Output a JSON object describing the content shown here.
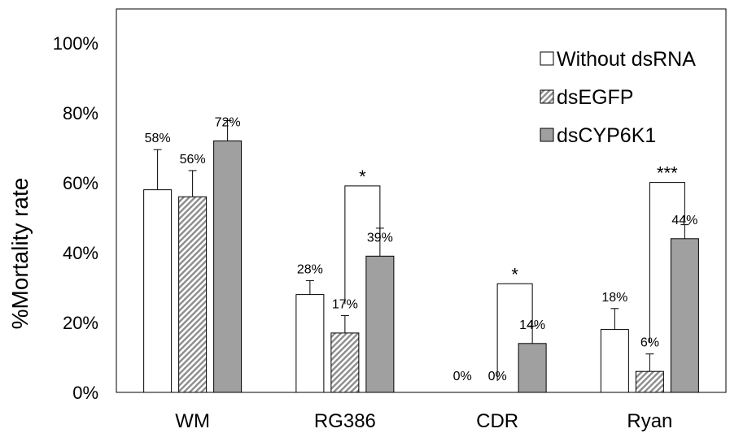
{
  "chart_data": {
    "type": "bar",
    "title": "",
    "xlabel": "",
    "ylabel": "%Mortality rate",
    "ylim": [
      0,
      100
    ],
    "yticks": [
      "0%",
      "20%",
      "40%",
      "60%",
      "80%",
      "100%"
    ],
    "categories": [
      "WM",
      "RG386",
      "CDR",
      "Ryan"
    ],
    "series": [
      {
        "name": "Without dsRNA",
        "values": [
          58,
          28,
          0,
          18
        ],
        "errors": [
          11.5,
          4,
          0,
          6
        ],
        "labels": [
          "58%",
          "28%",
          "0%",
          "18%"
        ],
        "fill": "#ffffff",
        "pattern": "none"
      },
      {
        "name": "dsEGFP",
        "values": [
          56,
          17,
          0,
          6
        ],
        "errors": [
          7.5,
          5,
          0,
          5
        ],
        "labels": [
          "56%",
          "17%",
          "0%",
          "6%"
        ],
        "fill": "#c8c8c8",
        "pattern": "diagonal-hatch"
      },
      {
        "name": "dsCYP6K1",
        "values": [
          72,
          39,
          14,
          44
        ],
        "errors": [
          5.8,
          8,
          5,
          4
        ],
        "labels": [
          "72%",
          "39%",
          "14%",
          "44%"
        ],
        "fill": "#a0a0a0",
        "pattern": "none"
      }
    ],
    "significance": [
      {
        "category": "RG386",
        "between": [
          "dsEGFP",
          "dsCYP6K1"
        ],
        "label": "*"
      },
      {
        "category": "CDR",
        "between": [
          "dsEGFP",
          "dsCYP6K1"
        ],
        "label": "*"
      },
      {
        "category": "Ryan",
        "between": [
          "dsEGFP",
          "dsCYP6K1"
        ],
        "label": "***"
      }
    ],
    "legend_position": "top-right",
    "grid": false
  }
}
